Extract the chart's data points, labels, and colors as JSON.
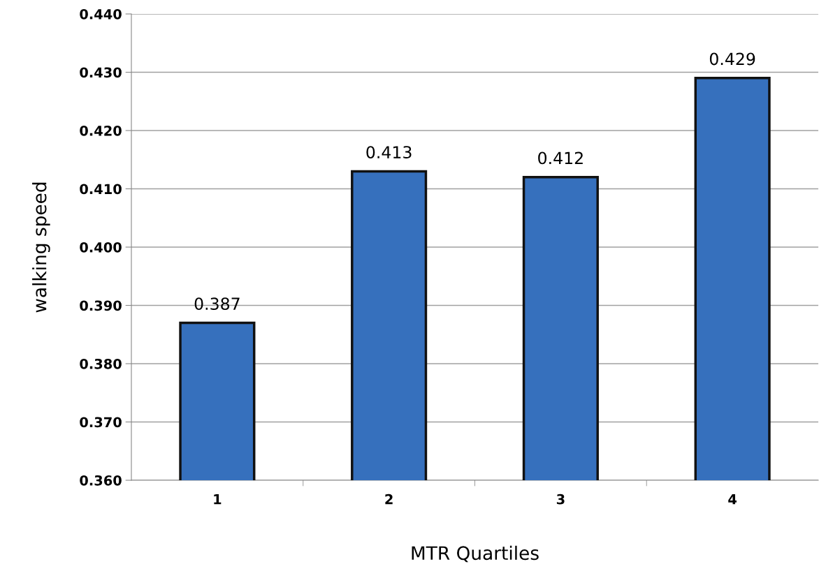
{
  "chart_data": {
    "type": "bar",
    "xlabel": "MTR Quartiles",
    "ylabel": "walking speed",
    "categories": [
      "1",
      "2",
      "3",
      "4"
    ],
    "values": [
      0.387,
      0.413,
      0.412,
      0.429
    ],
    "color": "#3670bd",
    "ylim": [
      0.36,
      0.44
    ],
    "yticks": [
      {
        "value": 0.36,
        "label": "0.360"
      },
      {
        "value": 0.37,
        "label": "0.370"
      },
      {
        "value": 0.38,
        "label": "0.380"
      },
      {
        "value": 0.39,
        "label": "0.390"
      },
      {
        "value": 0.4,
        "label": "0.400"
      },
      {
        "value": 0.41,
        "label": "0.410"
      },
      {
        "value": 0.42,
        "label": "0.420"
      },
      {
        "value": 0.43,
        "label": "0.430"
      },
      {
        "value": 0.44,
        "label": "0.440"
      }
    ],
    "grid": "y",
    "data_labels": true
  }
}
